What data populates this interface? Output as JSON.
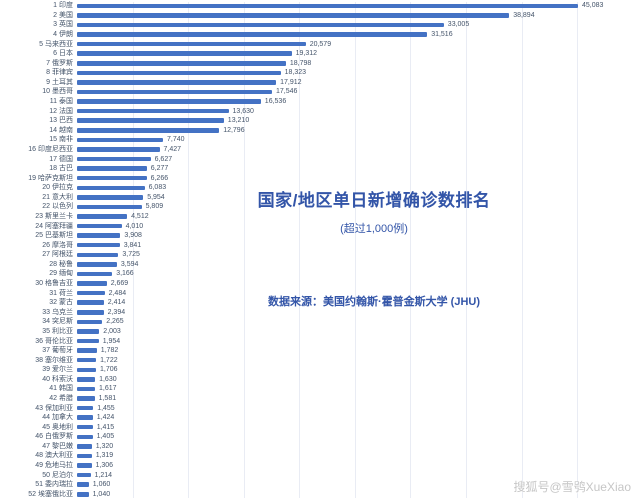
{
  "watermark": "搜狐号@雪鸮XueXiao",
  "colors": {
    "bar": "#4472c4",
    "title_text": "#3355a8",
    "label_text": "#44546a",
    "gridline": "#e9ecf4"
  },
  "chart_data": {
    "type": "bar",
    "orientation": "horizontal",
    "title": "国家/地区单日新增确诊数排名",
    "subtitle": "(超过1,000例)",
    "source": "数据来源：美国约翰斯·霍普金斯大学 (JHU)",
    "xlim": [
      0,
      45083
    ],
    "gridline_interval": 5000,
    "legend": "none",
    "value_labels": "outside-end",
    "categories": [
      "印度",
      "美国",
      "英国",
      "伊朗",
      "马来西亚",
      "日本",
      "俄罗斯",
      "菲律宾",
      "土耳其",
      "墨西哥",
      "泰国",
      "法国",
      "巴西",
      "越南",
      "南非",
      "印度尼西亚",
      "德国",
      "古巴",
      "哈萨克斯坦",
      "伊拉克",
      "意大利",
      "以色列",
      "斯里兰卡",
      "阿塞拜疆",
      "巴基斯坦",
      "摩洛哥",
      "阿根廷",
      "秘鲁",
      "缅甸",
      "格鲁吉亚",
      "荷兰",
      "蒙古",
      "乌克兰",
      "突尼斯",
      "利比亚",
      "哥伦比亚",
      "葡萄牙",
      "塞尔维亚",
      "爱尔兰",
      "科索沃",
      "韩国",
      "希腊",
      "保加利亚",
      "加拿大",
      "奥地利",
      "白俄罗斯",
      "黎巴嫩",
      "澳大利亚",
      "危地马拉",
      "尼泊尔",
      "委内瑞拉",
      "埃塞俄比亚"
    ],
    "values": [
      45083,
      38894,
      33005,
      31516,
      20579,
      19312,
      18798,
      18323,
      17912,
      17546,
      16536,
      13630,
      13210,
      12796,
      7740,
      7427,
      6627,
      6277,
      6266,
      6083,
      5954,
      5809,
      4512,
      4010,
      3908,
      3841,
      3725,
      3594,
      3166,
      2669,
      2484,
      2414,
      2394,
      2265,
      2003,
      1954,
      1782,
      1722,
      1706,
      1630,
      1617,
      1581,
      1455,
      1424,
      1415,
      1405,
      1320,
      1319,
      1306,
      1214,
      1060,
      1040
    ]
  }
}
